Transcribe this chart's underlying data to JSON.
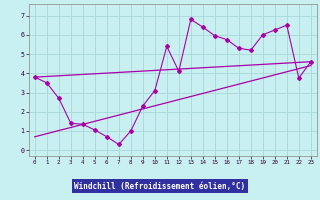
{
  "xlabel": "Windchill (Refroidissement éolien,°C)",
  "bg_color": "#c8f0f0",
  "grid_color": "#a8d8d8",
  "line_color": "#aa00aa",
  "xlabel_bg": "#3030a0",
  "xlabel_fg": "#ffffff",
  "x_ticks": [
    0,
    1,
    2,
    3,
    4,
    5,
    6,
    7,
    8,
    9,
    10,
    11,
    12,
    13,
    14,
    15,
    16,
    17,
    18,
    19,
    20,
    21,
    22,
    23
  ],
  "y_ticks": [
    0,
    1,
    2,
    3,
    4,
    5,
    6,
    7
  ],
  "xlim": [
    -0.5,
    23.5
  ],
  "ylim": [
    -0.3,
    7.6
  ],
  "zigzag_x": [
    0,
    1,
    2,
    3,
    4,
    5,
    6,
    7,
    8,
    9,
    10,
    11,
    12,
    13,
    14,
    15,
    16,
    17,
    18,
    19,
    20,
    21,
    22,
    23
  ],
  "zigzag_y": [
    3.8,
    3.5,
    2.7,
    1.4,
    1.35,
    1.05,
    0.7,
    0.3,
    1.0,
    2.3,
    3.1,
    5.4,
    4.1,
    6.8,
    6.4,
    5.95,
    5.75,
    5.3,
    5.2,
    6.0,
    6.25,
    6.5,
    3.75,
    4.6
  ],
  "upper_line_x": [
    0,
    23
  ],
  "upper_line_y": [
    3.8,
    4.6
  ],
  "lower_line_x": [
    0,
    23
  ],
  "lower_line_y": [
    0.7,
    4.4
  ]
}
